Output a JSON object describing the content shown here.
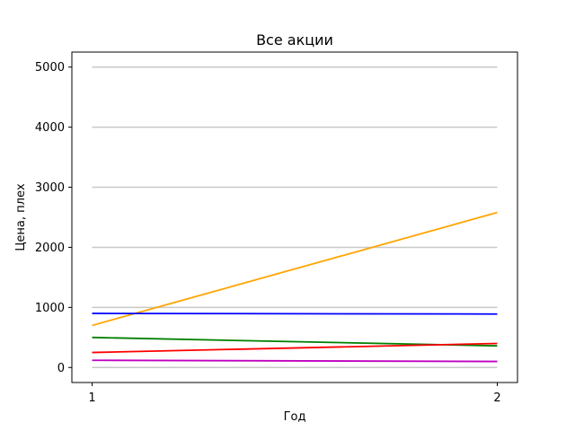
{
  "chart_data": {
    "type": "line",
    "title": "Все акции",
    "xlabel": "Год",
    "ylabel": "Цена, плех",
    "x": [
      1,
      2
    ],
    "x_ticks": [
      "1",
      "2"
    ],
    "y_ticks": [
      "0",
      "1000",
      "2000",
      "3000",
      "4000",
      "5000"
    ],
    "ylim": [
      -250,
      5250
    ],
    "xlim": [
      0.95,
      2.05
    ],
    "grid": "horizontal",
    "series": [
      {
        "color": "#ffa500",
        "values": [
          700,
          2580
        ]
      },
      {
        "color": "#0000ff",
        "values": [
          900,
          890
        ]
      },
      {
        "color": "#008000",
        "values": [
          500,
          360
        ]
      },
      {
        "color": "#ff0000",
        "values": [
          250,
          400
        ]
      },
      {
        "color": "#bf00bf",
        "values": [
          120,
          100
        ]
      }
    ]
  }
}
